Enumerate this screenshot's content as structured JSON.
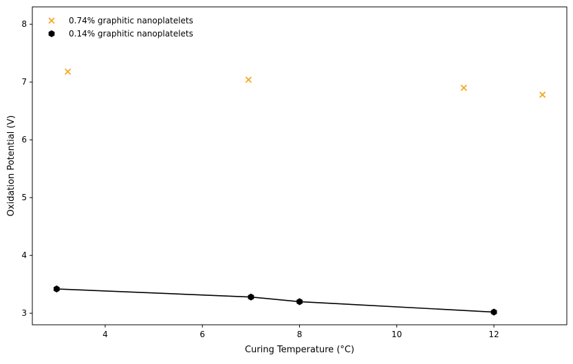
{
  "chart_data": {
    "type": "scatter",
    "title": "",
    "xlabel": "Curing Temperature (°C)",
    "ylabel": "Oxidation Potential (V)",
    "xlim": [
      2.5,
      13.5
    ],
    "ylim": [
      2.8,
      8.3
    ],
    "x_ticks": [
      4,
      6,
      8,
      10,
      12
    ],
    "y_ticks": [
      3,
      4,
      5,
      6,
      7,
      8
    ],
    "grid": false,
    "legend_position": "top-left",
    "series": [
      {
        "name": "0.74% graphitic nanoplatelets",
        "marker": "x",
        "connected": false,
        "color": "#f5a623",
        "x": [
          3.23,
          6.95,
          11.38,
          13.0
        ],
        "y": [
          7.18,
          7.04,
          6.9,
          6.78
        ]
      },
      {
        "name": "0.14% graphitic nanoplatelets",
        "marker": "hexagon",
        "connected": true,
        "color": "#000000",
        "x": [
          3.0,
          7.0,
          8.0,
          12.0
        ],
        "y": [
          3.42,
          3.28,
          3.2,
          3.02
        ]
      }
    ]
  }
}
